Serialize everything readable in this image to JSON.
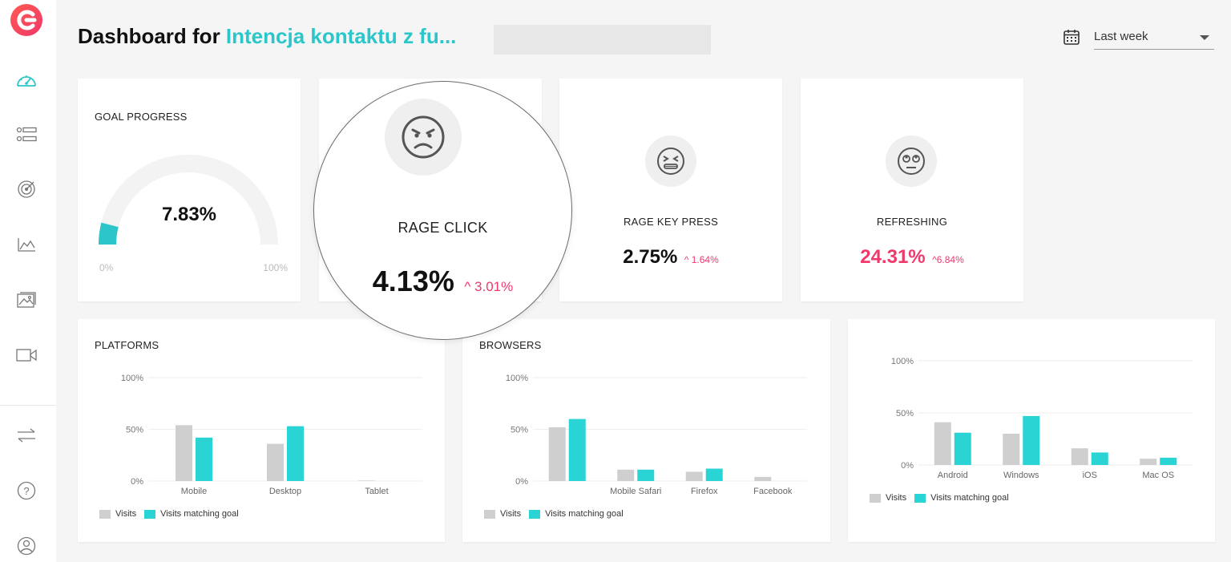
{
  "header": {
    "title_prefix": "Dashboard for ",
    "title_accent": "Intencja kontaktu z fu...",
    "date_range": "Last week"
  },
  "colors": {
    "accent": "#2bc6c9",
    "negative": "#f0386b",
    "visits": "#cfcfcf",
    "matching": "#2bd4d4"
  },
  "sidebar": {
    "items": [
      {
        "icon": "dashboard-gauge-icon"
      },
      {
        "icon": "segments-icon"
      },
      {
        "icon": "goals-target-icon"
      },
      {
        "icon": "trends-chart-icon"
      },
      {
        "icon": "heatmaps-image-icon"
      },
      {
        "icon": "recordings-video-icon"
      },
      {
        "icon": "swap-arrows-icon"
      },
      {
        "icon": "help-question-icon"
      },
      {
        "icon": "user-profile-icon"
      }
    ]
  },
  "goal_progress": {
    "title": "GOAL PROGRESS",
    "value": "7.83%",
    "progress": 0.0783,
    "min_label": "0%",
    "max_label": "100%"
  },
  "kpis": [
    {
      "label": "RAGE CLICK",
      "value": "4.13%",
      "delta": "3.01%",
      "icon": "angry-face-icon"
    },
    {
      "label": "RAGE KEY PRESS",
      "value": "2.75%",
      "delta": "1.64%",
      "icon": "frustrated-face-icon"
    },
    {
      "label": "REFRESHING",
      "value": "24.31%",
      "delta": "6.84%",
      "icon": "eye-roll-face-icon"
    }
  ],
  "legend": {
    "visits": "Visits",
    "matching": "Visits matching goal"
  },
  "charts": {
    "platforms_title": "PLATFORMS",
    "browsers_title": "BROWSERS"
  },
  "chart_data": [
    {
      "type": "bar",
      "title": "PLATFORMS",
      "categories": [
        "Mobile",
        "Desktop",
        "Tablet"
      ],
      "y_ticks": [
        "100%",
        "50%",
        "0%"
      ],
      "ylim": [
        0,
        100
      ],
      "series": [
        {
          "name": "Visits",
          "values": [
            54,
            36,
            0.5
          ]
        },
        {
          "name": "Visits matching goal",
          "values": [
            42,
            53,
            0
          ]
        }
      ]
    },
    {
      "type": "bar",
      "title": "BROWSERS",
      "categories": [
        "",
        "Mobile Safari",
        "Firefox",
        "Facebook"
      ],
      "y_ticks": [
        "100%",
        "50%",
        "0%"
      ],
      "ylim": [
        0,
        100
      ],
      "series": [
        {
          "name": "Visits",
          "values": [
            52,
            11,
            9,
            4
          ]
        },
        {
          "name": "Visits matching goal",
          "values": [
            60,
            11,
            12,
            0
          ]
        }
      ]
    },
    {
      "type": "bar",
      "title": "",
      "categories": [
        "Android",
        "Windows",
        "iOS",
        "Mac OS"
      ],
      "y_ticks": [
        "100%",
        "50%",
        "0%"
      ],
      "ylim": [
        0,
        100
      ],
      "series": [
        {
          "name": "Visits",
          "values": [
            41,
            30,
            16,
            6
          ]
        },
        {
          "name": "Visits matching goal",
          "values": [
            31,
            47,
            12,
            7
          ]
        }
      ]
    }
  ]
}
